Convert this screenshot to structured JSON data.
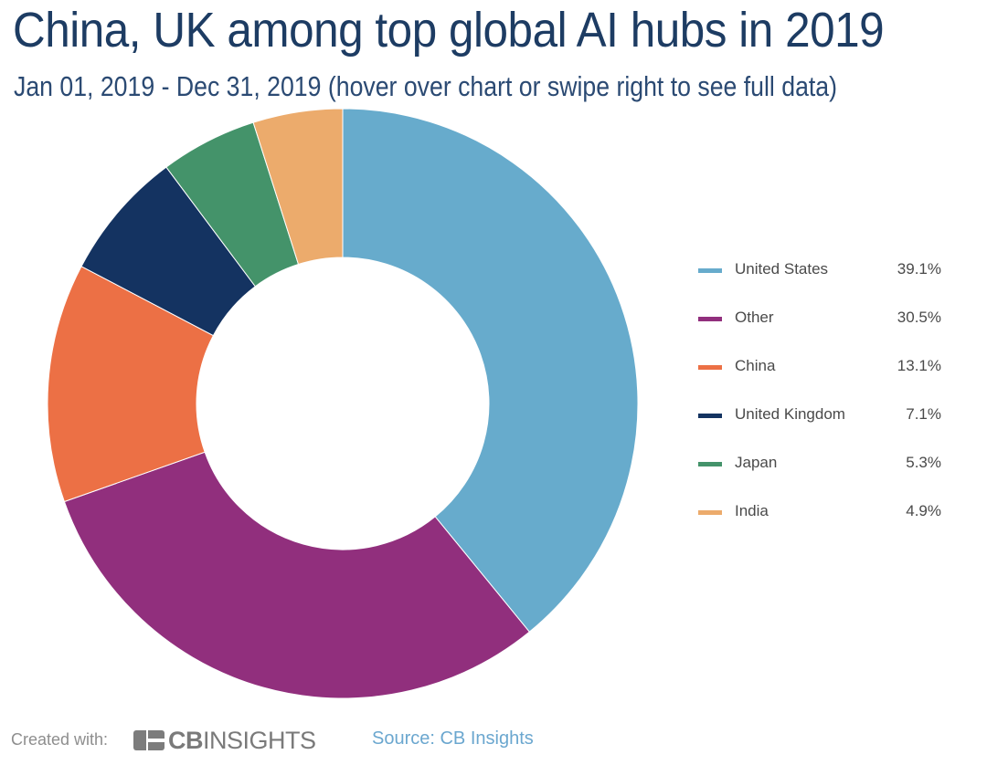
{
  "title": "China, UK among top global AI hubs in 2019",
  "subtitle": "Jan 01, 2019 - Dec 31, 2019 (hover over chart or swipe right to see full data)",
  "chart_data": {
    "type": "pie",
    "style": "donut",
    "title": "China, UK among top global AI hubs in 2019",
    "subtitle": "Jan 01, 2019 - Dec 31, 2019 (hover over chart or swipe right to see full data)",
    "categories": [
      "United States",
      "Other",
      "China",
      "United Kingdom",
      "Japan",
      "India"
    ],
    "values": [
      39.1,
      30.5,
      13.1,
      7.1,
      5.3,
      4.9
    ],
    "value_labels": [
      "39.1%",
      "30.5%",
      "13.1%",
      "7.1%",
      "5.3%",
      "4.9%"
    ],
    "colors": [
      "#67abcc",
      "#912f7d",
      "#ec7045",
      "#143361",
      "#44936a",
      "#ecab6c"
    ],
    "legend_position": "right",
    "unit": "%"
  },
  "footer": {
    "created_with": "Created with:",
    "logo_bold": "CB",
    "logo_light": "INSIGHTS",
    "source": "Source: CB Insights"
  }
}
